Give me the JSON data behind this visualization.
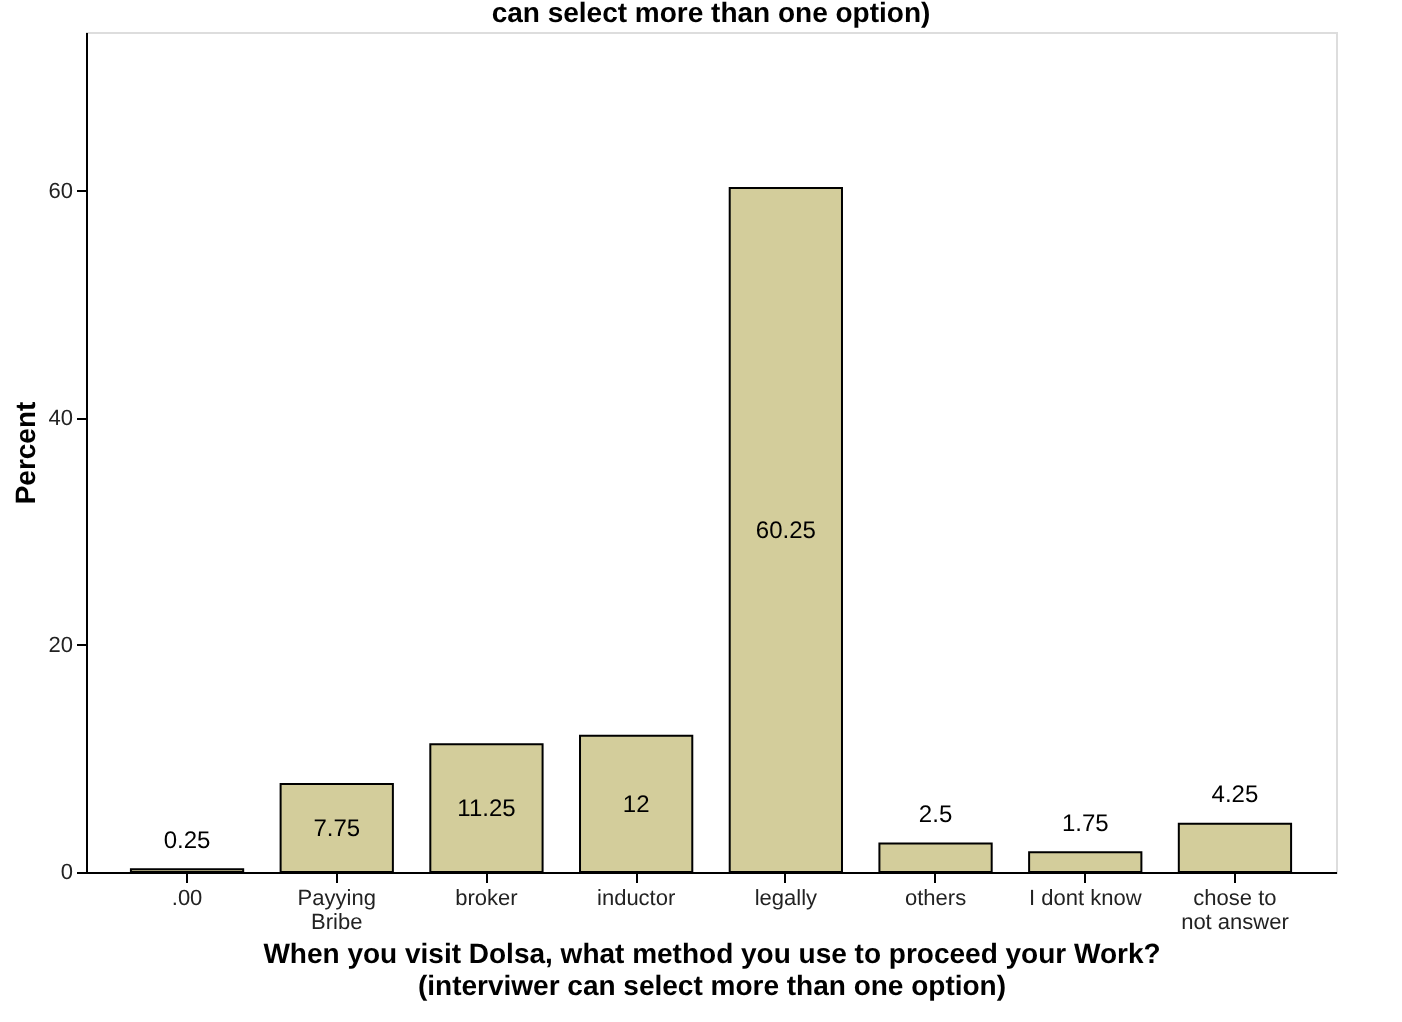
{
  "chart_data": {
    "type": "bar",
    "title": "can select more than one option)",
    "xlabel": "When you visit Dolsa, what method you use to proceed your Work?\n(interviwer can select more than one option)",
    "ylabel": "Percent",
    "categories": [
      ".00",
      "Payying Bribe",
      "broker",
      "inductor",
      "legally",
      "others",
      "I dont know",
      "chose to not answer"
    ],
    "values": [
      0.25,
      7.75,
      11.25,
      12,
      60.25,
      2.5,
      1.75,
      4.25
    ],
    "color": "#d3cd9b",
    "ylim": [
      0,
      74
    ],
    "yticks": [
      0,
      20,
      40,
      60
    ],
    "grid": false,
    "data_labels": true
  }
}
